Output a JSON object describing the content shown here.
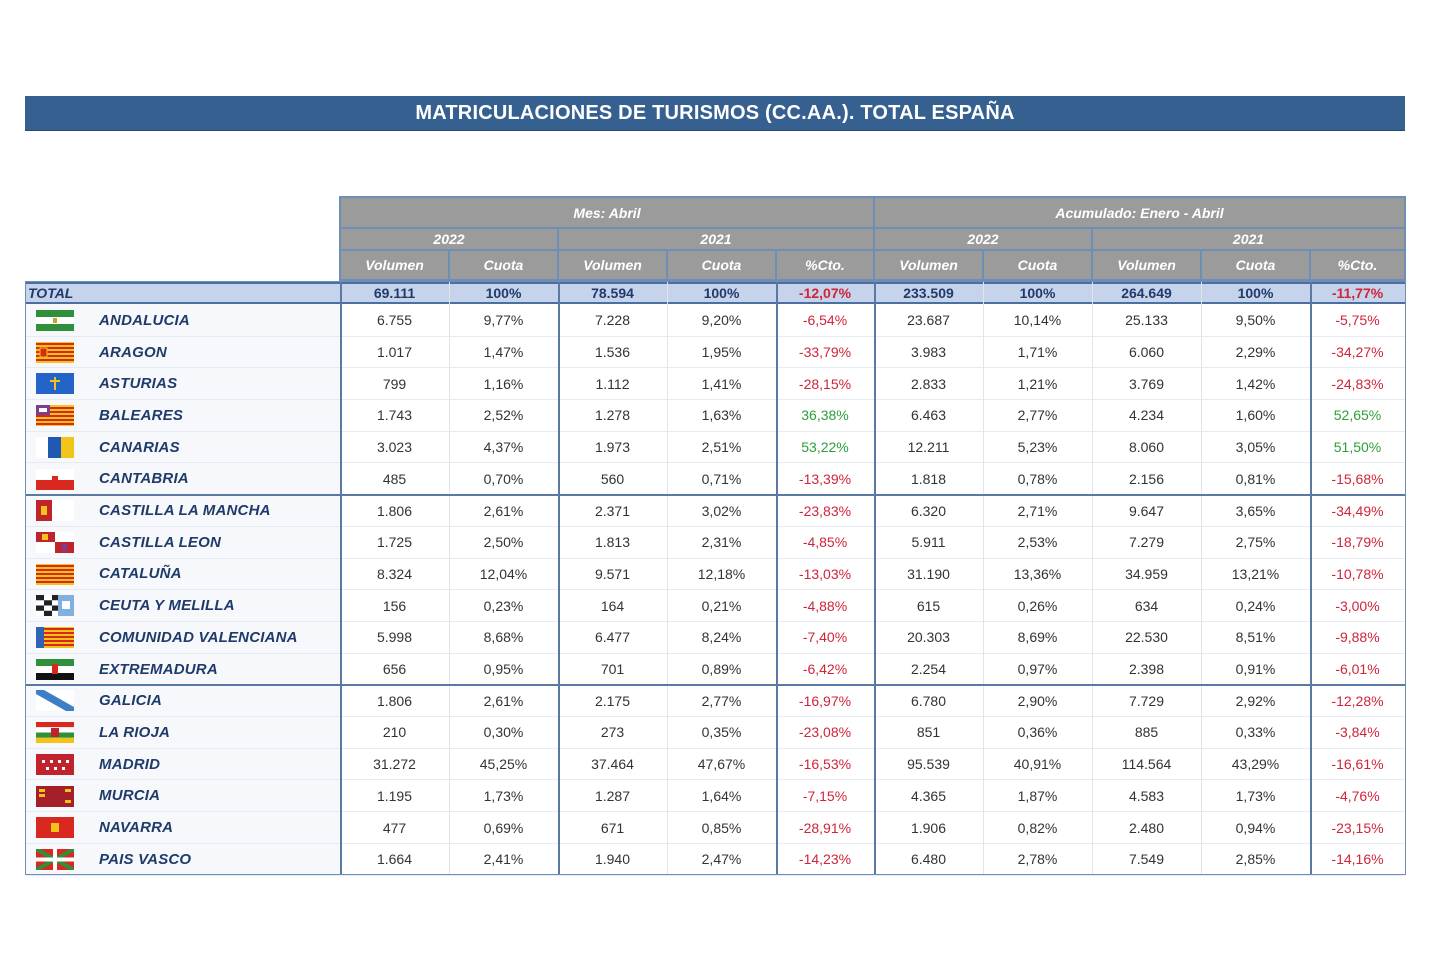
{
  "title": "MATRICULACIONES DE TURISMOS (CC.AA.). TOTAL ESPAÑA",
  "header": {
    "group_month": "Mes: Abril",
    "group_acc": "Acumulado: Enero - Abril",
    "year_2022": "2022",
    "year_2021": "2021",
    "col_volumen": "Volumen",
    "col_cuota": "Cuota",
    "col_cto": "%Cto."
  },
  "total": {
    "label": "TOTAL",
    "values": [
      "69.111",
      "100%",
      "78.594",
      "100%",
      "-12,07%",
      "233.509",
      "100%",
      "264.649",
      "100%",
      "-11,77%"
    ]
  },
  "flags": {
    "andalucia": [
      "#2f8f3b",
      "#ffffff",
      "#2f8f3b"
    ],
    "aragon": [
      "#f2c418",
      "#d8281f"
    ],
    "asturias": [
      "#2463c7",
      "#f2c418"
    ],
    "baleares": [
      "#f2c418",
      "#d8281f",
      "#7a3d8f"
    ],
    "canarias": [
      "#ffffff",
      "#1f59b3",
      "#f2c418"
    ],
    "cantabria": [
      "#ffffff",
      "#d8281f"
    ],
    "castilla_la_mancha": [
      "#c0232b",
      "#ffffff",
      "#f2c418"
    ],
    "castilla_leon": [
      "#c0232b",
      "#ffffff",
      "#f2c418"
    ],
    "cataluna": [
      "#f2c418",
      "#d8281f"
    ],
    "ceuta_melilla": [
      "#222222",
      "#ffffff",
      "#7fb0e0"
    ],
    "valenciana": [
      "#f2c418",
      "#d8281f",
      "#2f63b5"
    ],
    "extremadura": [
      "#2f8f3b",
      "#ffffff",
      "#111111"
    ],
    "galicia": [
      "#ffffff",
      "#3c7fc7"
    ],
    "la_rioja": [
      "#d8281f",
      "#ffffff",
      "#2f8f3b",
      "#f2c418"
    ],
    "madrid": [
      "#c0232b",
      "#ffffff"
    ],
    "murcia": [
      "#a51f2b",
      "#f2c418"
    ],
    "navarra": [
      "#d8281f",
      "#f2c418"
    ],
    "pais_vasco": [
      "#d8281f",
      "#2f8f3b",
      "#ffffff"
    ]
  },
  "rows": [
    {
      "name": "ANDALUCIA",
      "flag": "andalucia",
      "values": [
        "6.755",
        "9,77%",
        "7.228",
        "9,20%",
        "-6,54%",
        "23.687",
        "10,14%",
        "25.133",
        "9,50%",
        "-5,75%"
      ],
      "signs": [
        "neg",
        "neg"
      ]
    },
    {
      "name": "ARAGON",
      "flag": "aragon",
      "values": [
        "1.017",
        "1,47%",
        "1.536",
        "1,95%",
        "-33,79%",
        "3.983",
        "1,71%",
        "6.060",
        "2,29%",
        "-34,27%"
      ],
      "signs": [
        "neg",
        "neg"
      ]
    },
    {
      "name": "ASTURIAS",
      "flag": "asturias",
      "values": [
        "799",
        "1,16%",
        "1.112",
        "1,41%",
        "-28,15%",
        "2.833",
        "1,21%",
        "3.769",
        "1,42%",
        "-24,83%"
      ],
      "signs": [
        "neg",
        "neg"
      ]
    },
    {
      "name": "BALEARES",
      "flag": "baleares",
      "values": [
        "1.743",
        "2,52%",
        "1.278",
        "1,63%",
        "36,38%",
        "6.463",
        "2,77%",
        "4.234",
        "1,60%",
        "52,65%"
      ],
      "signs": [
        "pos",
        "pos"
      ]
    },
    {
      "name": "CANARIAS",
      "flag": "canarias",
      "values": [
        "3.023",
        "4,37%",
        "1.973",
        "2,51%",
        "53,22%",
        "12.211",
        "5,23%",
        "8.060",
        "3,05%",
        "51,50%"
      ],
      "signs": [
        "pos",
        "pos"
      ]
    },
    {
      "name": "CANTABRIA",
      "flag": "cantabria",
      "values": [
        "485",
        "0,70%",
        "560",
        "0,71%",
        "-13,39%",
        "1.818",
        "0,78%",
        "2.156",
        "0,81%",
        "-15,68%"
      ],
      "signs": [
        "neg",
        "neg"
      ]
    },
    {
      "name": "CASTILLA LA MANCHA",
      "flag": "castilla_la_mancha",
      "values": [
        "1.806",
        "2,61%",
        "2.371",
        "3,02%",
        "-23,83%",
        "6.320",
        "2,71%",
        "9.647",
        "3,65%",
        "-34,49%"
      ],
      "signs": [
        "neg",
        "neg"
      ]
    },
    {
      "name": "CASTILLA LEON",
      "flag": "castilla_leon",
      "values": [
        "1.725",
        "2,50%",
        "1.813",
        "2,31%",
        "-4,85%",
        "5.911",
        "2,53%",
        "7.279",
        "2,75%",
        "-18,79%"
      ],
      "signs": [
        "neg",
        "neg"
      ]
    },
    {
      "name": "CATALUÑA",
      "flag": "cataluna",
      "values": [
        "8.324",
        "12,04%",
        "9.571",
        "12,18%",
        "-13,03%",
        "31.190",
        "13,36%",
        "34.959",
        "13,21%",
        "-10,78%"
      ],
      "signs": [
        "neg",
        "neg"
      ]
    },
    {
      "name": "CEUTA Y MELILLA",
      "flag": "ceuta_melilla",
      "values": [
        "156",
        "0,23%",
        "164",
        "0,21%",
        "-4,88%",
        "615",
        "0,26%",
        "634",
        "0,24%",
        "-3,00%"
      ],
      "signs": [
        "neg",
        "neg"
      ]
    },
    {
      "name": "COMUNIDAD VALENCIANA",
      "flag": "valenciana",
      "values": [
        "5.998",
        "8,68%",
        "6.477",
        "8,24%",
        "-7,40%",
        "20.303",
        "8,69%",
        "22.530",
        "8,51%",
        "-9,88%"
      ],
      "signs": [
        "neg",
        "neg"
      ]
    },
    {
      "name": "EXTREMADURA",
      "flag": "extremadura",
      "values": [
        "656",
        "0,95%",
        "701",
        "0,89%",
        "-6,42%",
        "2.254",
        "0,97%",
        "2.398",
        "0,91%",
        "-6,01%"
      ],
      "signs": [
        "neg",
        "neg"
      ]
    },
    {
      "name": "GALICIA",
      "flag": "galicia",
      "values": [
        "1.806",
        "2,61%",
        "2.175",
        "2,77%",
        "-16,97%",
        "6.780",
        "2,90%",
        "7.729",
        "2,92%",
        "-12,28%"
      ],
      "signs": [
        "neg",
        "neg"
      ]
    },
    {
      "name": "LA RIOJA",
      "flag": "la_rioja",
      "values": [
        "210",
        "0,30%",
        "273",
        "0,35%",
        "-23,08%",
        "851",
        "0,36%",
        "885",
        "0,33%",
        "-3,84%"
      ],
      "signs": [
        "neg",
        "neg"
      ]
    },
    {
      "name": "MADRID",
      "flag": "madrid",
      "values": [
        "31.272",
        "45,25%",
        "37.464",
        "47,67%",
        "-16,53%",
        "95.539",
        "40,91%",
        "114.564",
        "43,29%",
        "-16,61%"
      ],
      "signs": [
        "neg",
        "neg"
      ]
    },
    {
      "name": "MURCIA",
      "flag": "murcia",
      "values": [
        "1.195",
        "1,73%",
        "1.287",
        "1,64%",
        "-7,15%",
        "4.365",
        "1,87%",
        "4.583",
        "1,73%",
        "-4,76%"
      ],
      "signs": [
        "neg",
        "neg"
      ]
    },
    {
      "name": "NAVARRA",
      "flag": "navarra",
      "values": [
        "477",
        "0,69%",
        "671",
        "0,85%",
        "-28,91%",
        "1.906",
        "0,82%",
        "2.480",
        "0,94%",
        "-23,15%"
      ],
      "signs": [
        "neg",
        "neg"
      ]
    },
    {
      "name": "PAIS VASCO",
      "flag": "pais_vasco",
      "values": [
        "1.664",
        "2,41%",
        "1.940",
        "2,47%",
        "-14,23%",
        "6.480",
        "2,78%",
        "7.549",
        "2,85%",
        "-14,16%"
      ],
      "signs": [
        "neg",
        "neg"
      ]
    }
  ]
}
